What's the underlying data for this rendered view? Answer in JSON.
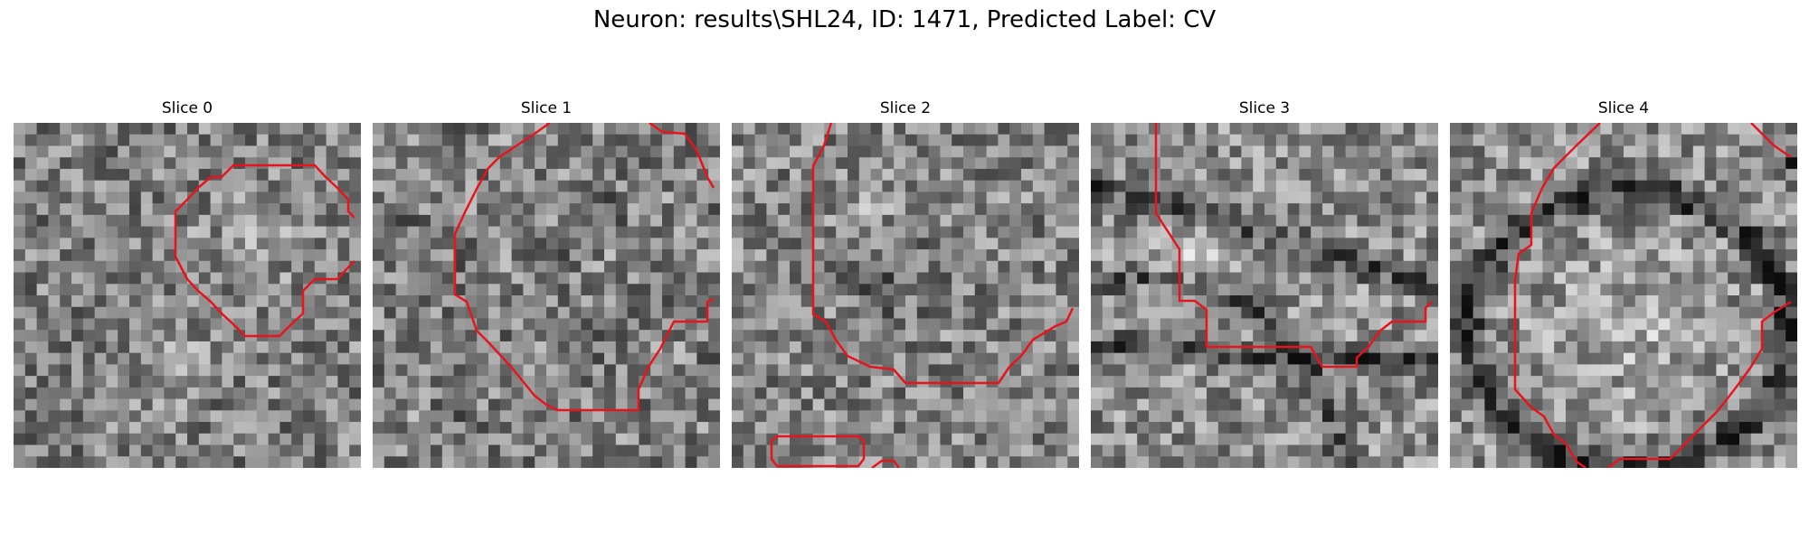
{
  "title": "Neuron: results\\SHL24, ID: 1471, Predicted Label: CV",
  "slices": [
    {
      "label": "Slice 0"
    },
    {
      "label": "Slice 1"
    },
    {
      "label": "Slice 2"
    },
    {
      "label": "Slice 3"
    },
    {
      "label": "Slice 4"
    }
  ],
  "colors": {
    "contour": "#e8141c",
    "background": "#ffffff"
  }
}
